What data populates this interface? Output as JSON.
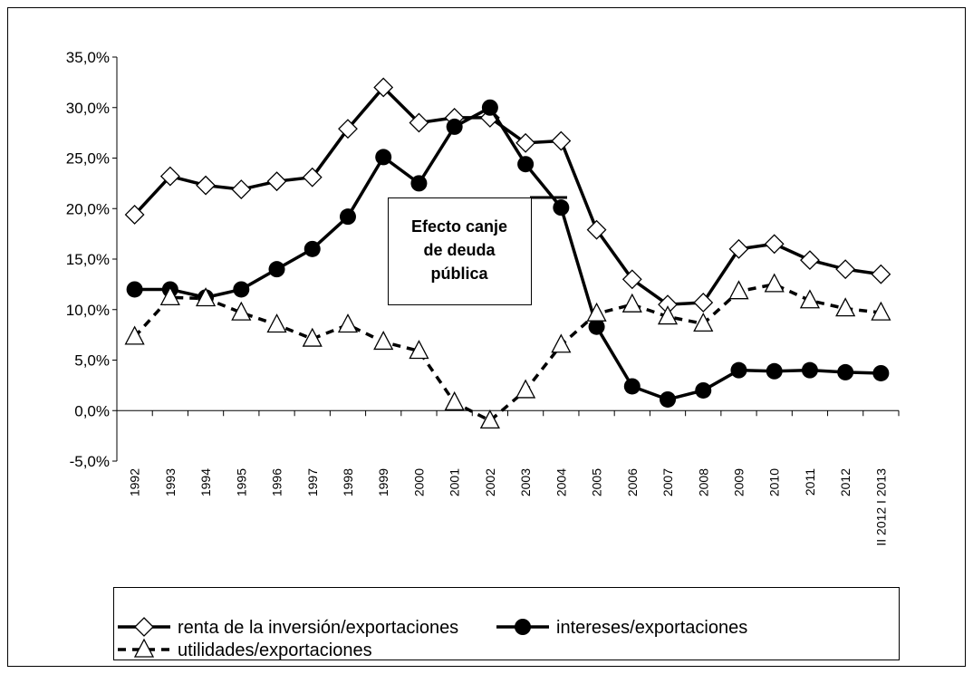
{
  "chart_data": {
    "type": "line",
    "categories": [
      "1992",
      "1993",
      "1994",
      "1995",
      "1996",
      "1997",
      "1998",
      "1999",
      "2000",
      "2001",
      "2002",
      "2003",
      "2004",
      "2005",
      "2006",
      "2007",
      "2008",
      "2009",
      "2010",
      "2011",
      "2012",
      "II 2012 I 2013"
    ],
    "series": [
      {
        "name": "renta de la inversión/exportaciones",
        "color": "#000000",
        "marker": "diamond",
        "dash": false,
        "values": [
          19.4,
          23.2,
          22.3,
          21.9,
          22.7,
          23.1,
          27.9,
          32.0,
          28.5,
          29.0,
          29.0,
          26.5,
          26.7,
          17.9,
          13.0,
          10.5,
          10.7,
          16.0,
          16.5,
          14.9,
          14.0,
          13.5
        ]
      },
      {
        "name": "intereses/exportaciones",
        "color": "#000000",
        "marker": "circle",
        "dash": false,
        "values": [
          12.0,
          12.0,
          11.2,
          12.0,
          14.0,
          16.0,
          19.2,
          25.1,
          22.5,
          28.1,
          30.0,
          24.4,
          20.1,
          8.3,
          2.4,
          1.1,
          2.0,
          4.0,
          3.9,
          4.0,
          3.8,
          3.7
        ]
      },
      {
        "name": "utilidades/exportaciones",
        "color": "#000000",
        "marker": "triangle",
        "dash": true,
        "values": [
          7.3,
          11.2,
          11.1,
          9.7,
          8.5,
          7.1,
          8.5,
          6.8,
          5.9,
          0.8,
          -1.0,
          2.0,
          6.5,
          9.6,
          10.5,
          9.3,
          8.6,
          11.8,
          12.5,
          10.9,
          10.1,
          9.7
        ]
      }
    ],
    "annotation": [
      "Efecto canje",
      "de deuda",
      "pública"
    ],
    "ylim": [
      -5,
      35
    ],
    "yticks": [
      {
        "value": -5,
        "label": "-5,0%"
      },
      {
        "value": 0,
        "label": "0,0%"
      },
      {
        "value": 5,
        "label": "5,0%"
      },
      {
        "value": 10,
        "label": "10,0%"
      },
      {
        "value": 15,
        "label": "15,0%"
      },
      {
        "value": 20,
        "label": "20,0%"
      },
      {
        "value": 25,
        "label": "25,0%"
      },
      {
        "value": 30,
        "label": "30,0%"
      },
      {
        "value": 35,
        "label": "35,0%"
      }
    ],
    "grid": false,
    "legend": "bottom"
  }
}
